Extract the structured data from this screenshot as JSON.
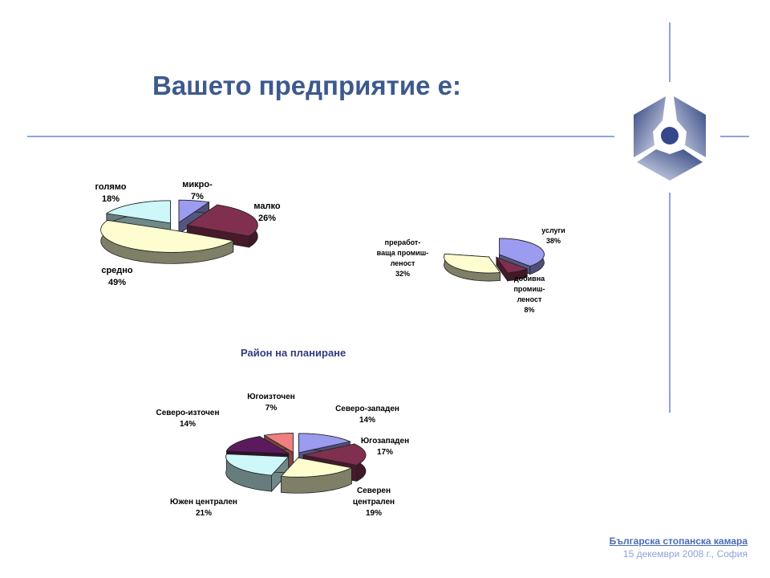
{
  "slide": {
    "title": "Вашето предприятие е:",
    "chart_title": "Район на планиране",
    "footer_org": "Българска стопанска камара",
    "footer_date": "15 декември 2008 г., София"
  },
  "colors": {
    "accent": "#3d5a8c",
    "lines": "#8fa3d8",
    "logo": "#4a5f99"
  },
  "chart_data": [
    {
      "type": "pie",
      "categories": [
        "микро-",
        "малко",
        "средно",
        "голямо"
      ],
      "values": [
        7,
        26,
        49,
        18
      ],
      "labels": [
        "7%",
        "26%",
        "49%",
        "18%"
      ],
      "colors": [
        "#9b9bf0",
        "#80304e",
        "#fdfdd0",
        "#cdf7f8"
      ]
    },
    {
      "type": "pie",
      "categories": [
        "услуги",
        "добивна промиш-леност",
        "преработ-ваща промиш-леност"
      ],
      "values": [
        38,
        8,
        32
      ],
      "labels": [
        "38%",
        "8%",
        "32%"
      ],
      "colors": [
        "#9b9bf0",
        "#80304e",
        "#fdfdd0"
      ]
    },
    {
      "type": "pie",
      "title": "Район на планиране",
      "categories": [
        "Северо-западен",
        "Югозападен",
        "Северен централен",
        "Южен централен",
        "Северо-източен",
        "Югоизточен"
      ],
      "values": [
        14,
        17,
        19,
        21,
        14,
        7
      ],
      "labels": [
        "14%",
        "17%",
        "19%",
        "21%",
        "14%",
        "7%"
      ],
      "colors": [
        "#9b9bf0",
        "#80304e",
        "#fdfdd0",
        "#cdf7f8",
        "#5c1a5e",
        "#f08080"
      ]
    }
  ]
}
